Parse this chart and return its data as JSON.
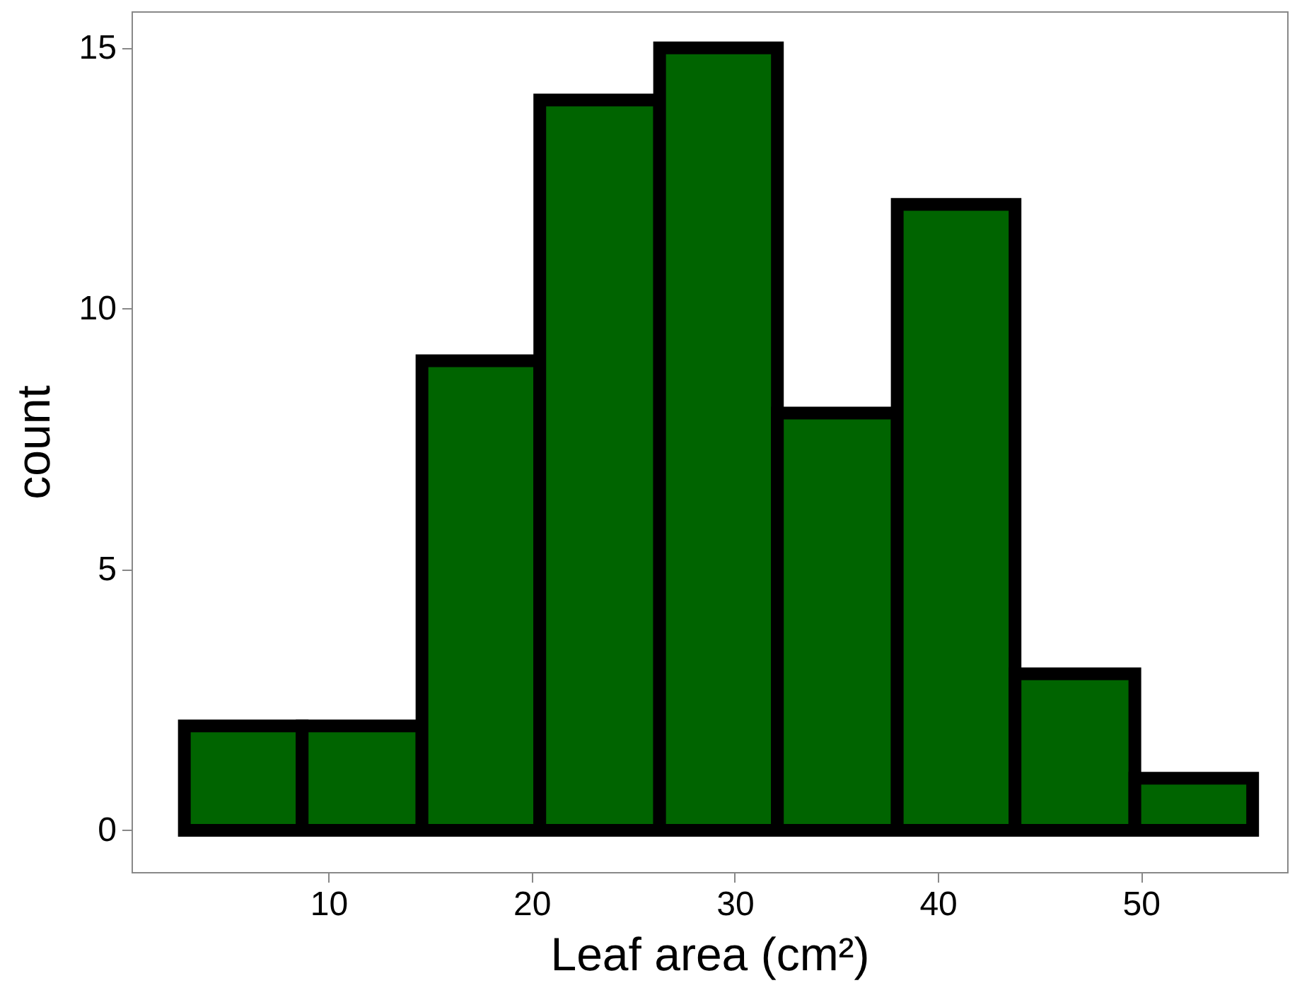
{
  "chart_data": {
    "type": "histogram",
    "xlabel": "Leaf area (cm²)",
    "ylabel": "count",
    "bins": [
      2.9,
      8.7,
      14.6,
      20.4,
      26.3,
      32.1,
      38.0,
      43.8,
      49.7,
      55.5
    ],
    "values": [
      2,
      2,
      9,
      14,
      15,
      8,
      12,
      3,
      1
    ],
    "color": "#006400",
    "xlim": [
      0.3,
      57.2
    ],
    "xticks": [
      10,
      20,
      30,
      40,
      50
    ],
    "ylim": [
      -0.8,
      15.7
    ],
    "yticks": [
      0,
      5,
      10,
      15
    ],
    "grid": false
  }
}
